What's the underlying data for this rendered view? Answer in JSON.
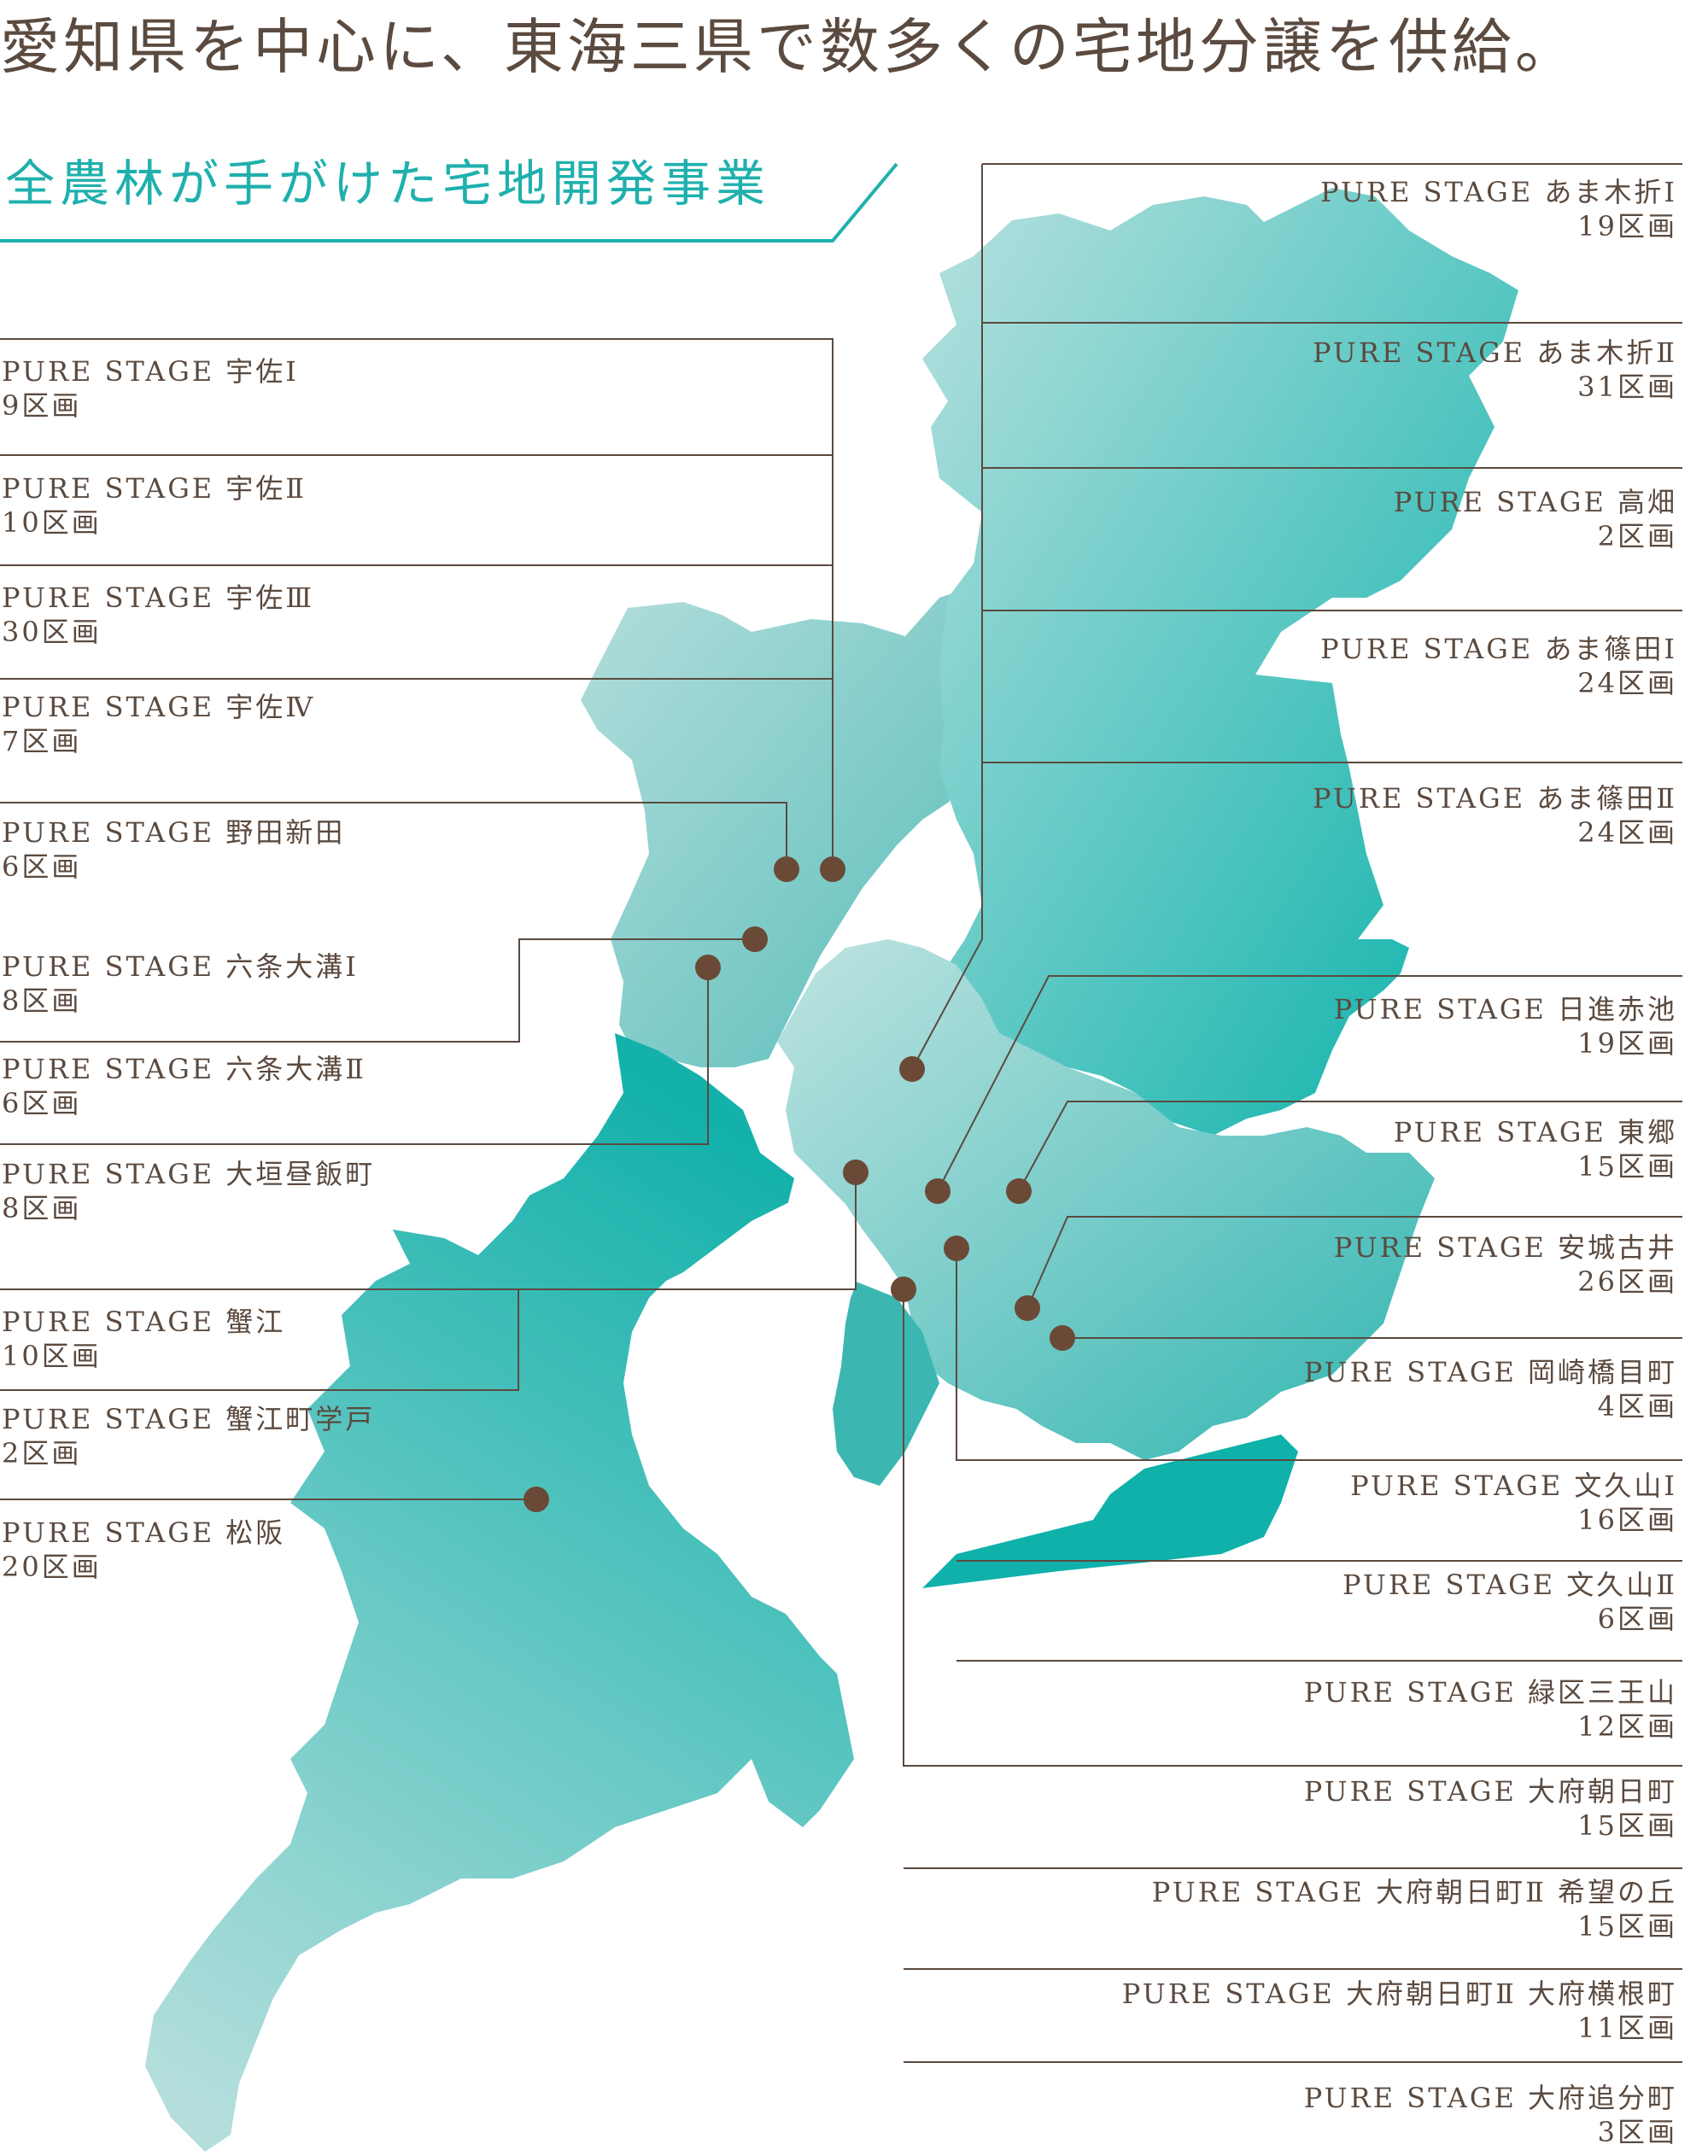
{
  "headline": "愛知県を中心に、東海三県で数多くの宅地分譲を供給。",
  "subtitle": "全農林が手がけた宅地開発事業",
  "colors": {
    "text": "#5b4a3f",
    "accent": "#1fb0ad",
    "map_light": "#b4dfdd",
    "map_dark": "#07b0aa",
    "line": "#5b4a3f",
    "marker": "#6a4a36"
  },
  "left_labels": [
    {
      "name": "PURE STAGE 宇佐Ⅰ",
      "count": "9区画"
    },
    {
      "name": "PURE STAGE 宇佐Ⅱ",
      "count": "10区画"
    },
    {
      "name": "PURE STAGE 宇佐Ⅲ",
      "count": "30区画"
    },
    {
      "name": "PURE STAGE 宇佐Ⅳ",
      "count": "7区画"
    },
    {
      "name": "PURE STAGE 野田新田",
      "count": "6区画"
    },
    {
      "name": "PURE STAGE 六条大溝Ⅰ",
      "count": "8区画"
    },
    {
      "name": "PURE STAGE 六条大溝Ⅱ",
      "count": "6区画"
    },
    {
      "name": "PURE STAGE 大垣昼飯町",
      "count": "8区画"
    },
    {
      "name": "PURE STAGE 蟹江",
      "count": "10区画"
    },
    {
      "name": "PURE STAGE 蟹江町学戸",
      "count": "2区画"
    },
    {
      "name": "PURE STAGE 松阪",
      "count": "20区画"
    }
  ],
  "right_labels": [
    {
      "name": "PURE STAGE あま木折Ⅰ",
      "count": "19区画"
    },
    {
      "name": "PURE STAGE あま木折Ⅱ",
      "count": "31区画"
    },
    {
      "name": "PURE STAGE 高畑",
      "count": "2区画"
    },
    {
      "name": "PURE STAGE あま篠田Ⅰ",
      "count": "24区画"
    },
    {
      "name": "PURE STAGE あま篠田Ⅱ",
      "count": "24区画"
    },
    {
      "name": "PURE STAGE 日進赤池",
      "count": "19区画"
    },
    {
      "name": "PURE STAGE 東郷",
      "count": "15区画"
    },
    {
      "name": "PURE STAGE 安城古井",
      "count": "26区画"
    },
    {
      "name": "PURE STAGE 岡崎橋目町",
      "count": "4区画"
    },
    {
      "name": "PURE STAGE 文久山Ⅰ",
      "count": "16区画"
    },
    {
      "name": "PURE STAGE 文久山Ⅱ",
      "count": "6区画"
    },
    {
      "name": "PURE STAGE 緑区三王山",
      "count": "12区画"
    },
    {
      "name": "PURE STAGE 大府朝日町",
      "count": "15区画"
    },
    {
      "name": "PURE STAGE 大府朝日町Ⅱ 希望の丘",
      "count": "15区画"
    },
    {
      "name": "PURE STAGE 大府朝日町Ⅱ 大府横根町",
      "count": "11区画"
    },
    {
      "name": "PURE STAGE 大府追分町",
      "count": "3区画"
    }
  ]
}
